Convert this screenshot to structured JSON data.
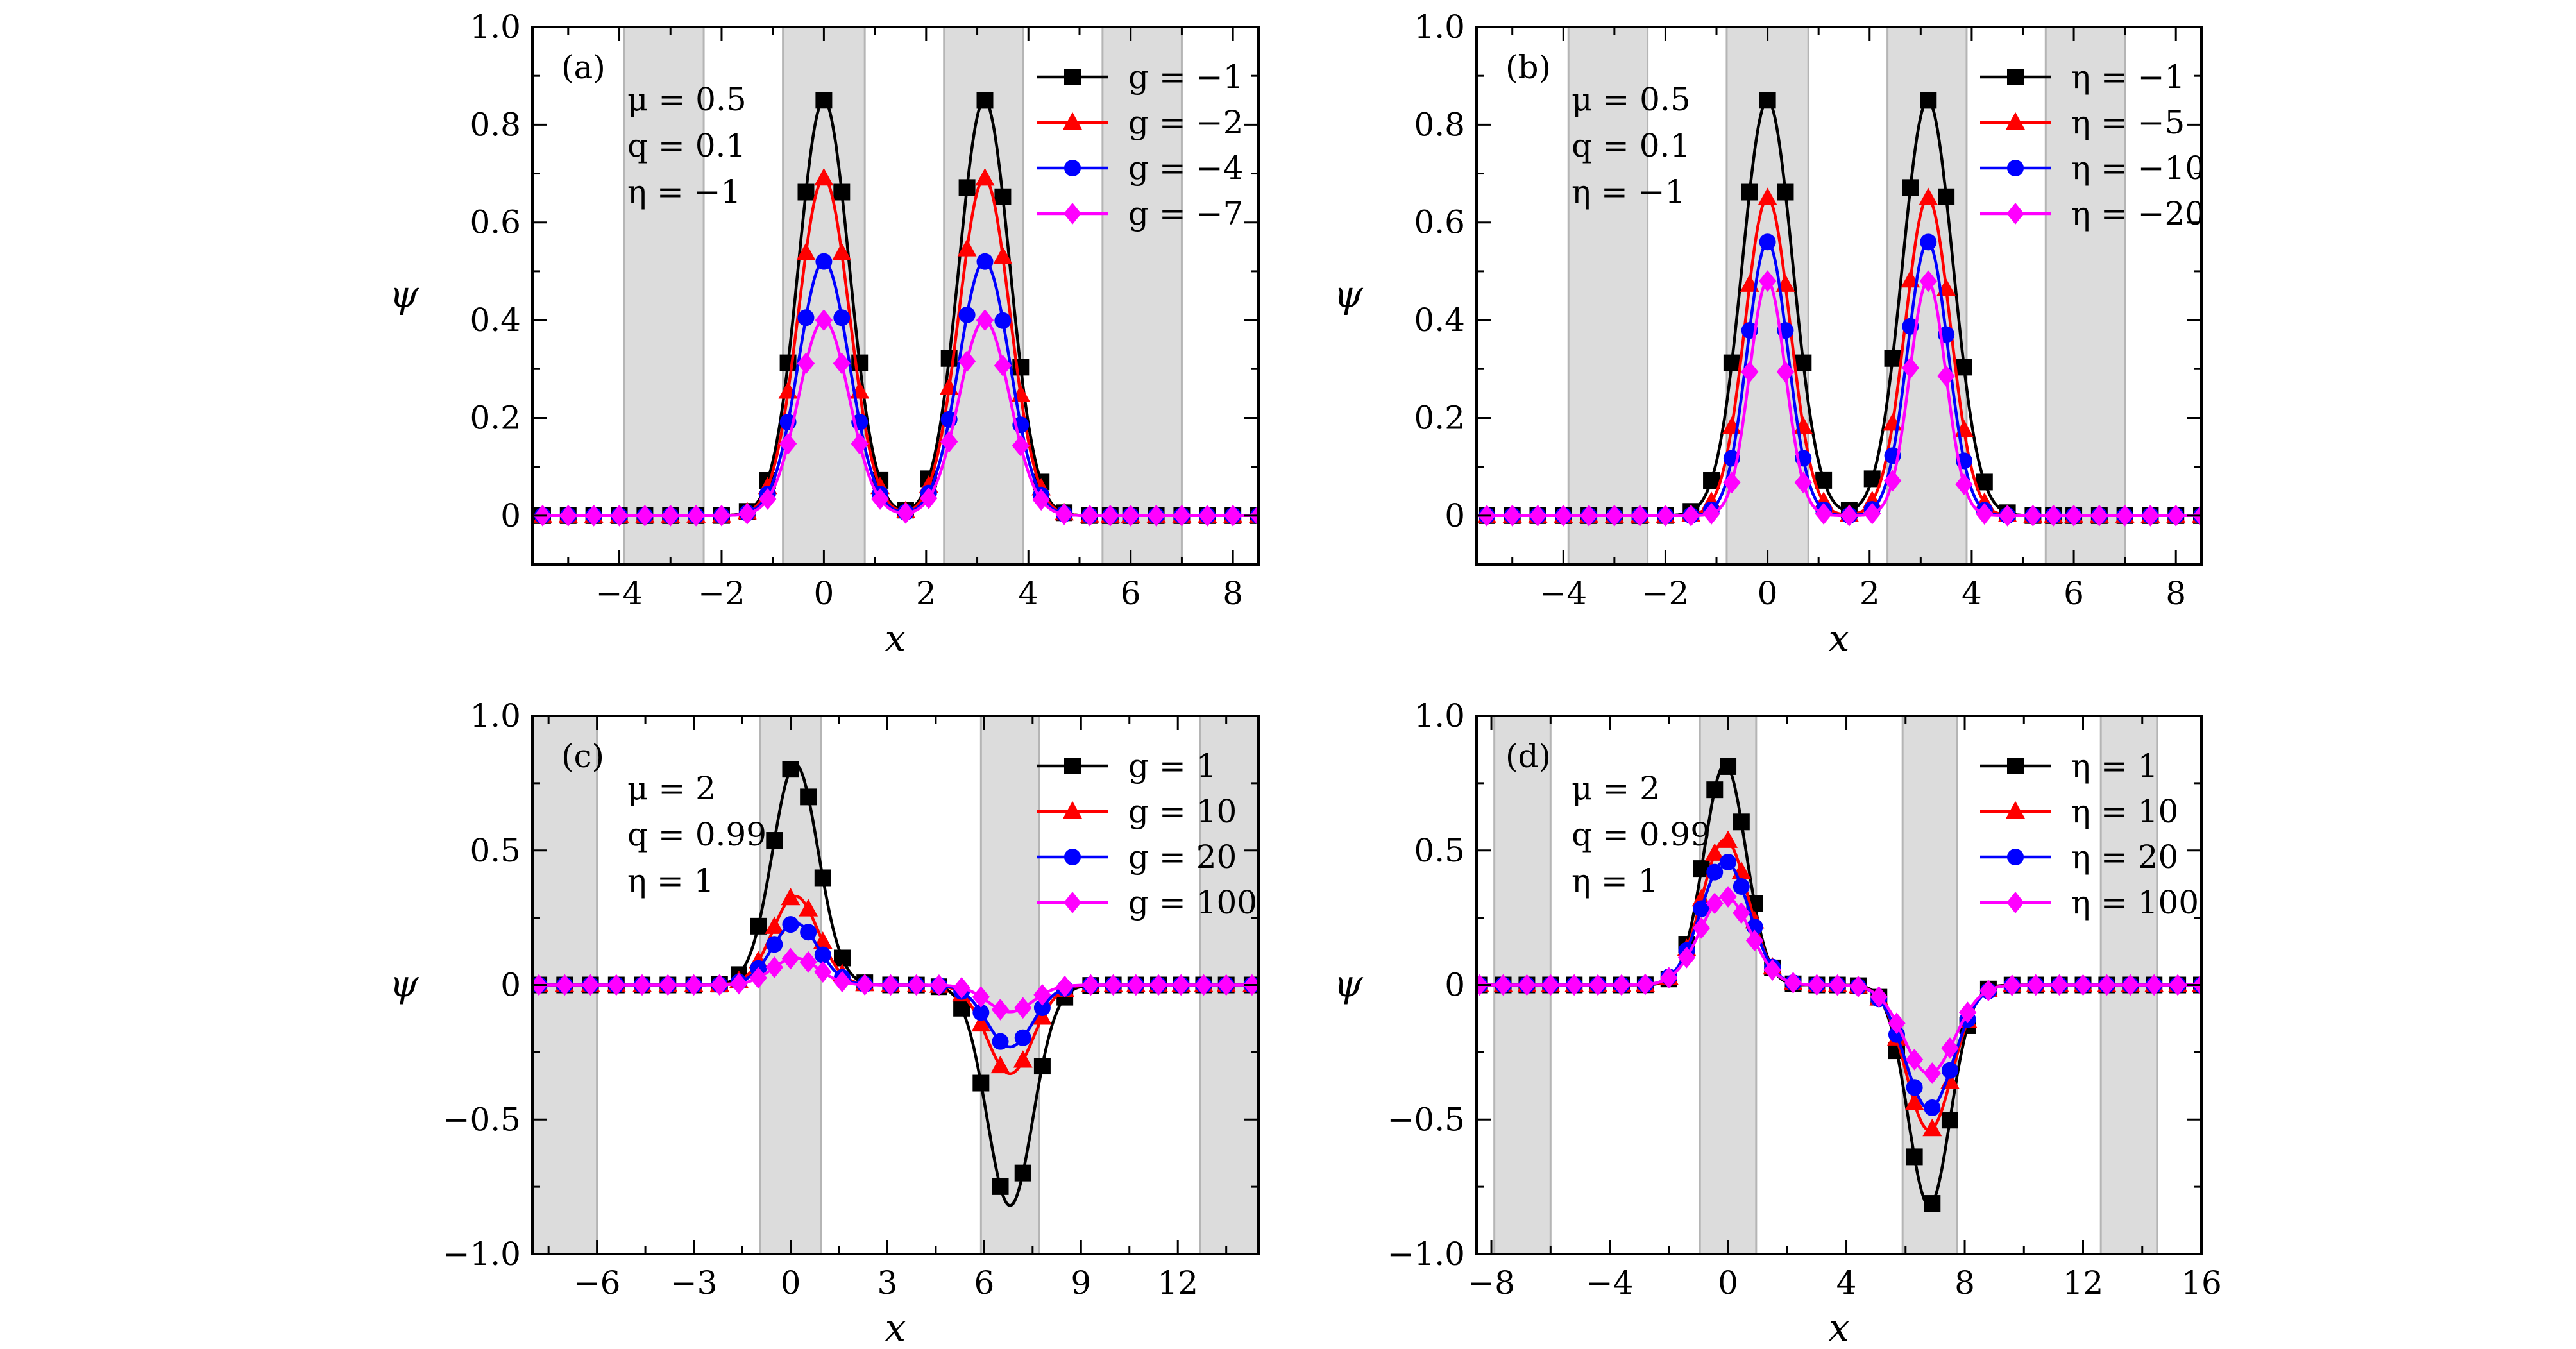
{
  "chart_data": [
    {
      "panel": "(a)",
      "type": "line",
      "xlabel": "x",
      "ylabel": "ψ",
      "xlim": [
        -5.7,
        8.5
      ],
      "ylim": [
        -0.1,
        1.0
      ],
      "xticks": [
        -4,
        -2,
        0,
        2,
        4,
        6,
        8
      ],
      "xtick_labels": [
        "−4",
        "−2",
        "0",
        "2",
        "4",
        "6",
        "8"
      ],
      "yticks": [
        0,
        0.2,
        0.4,
        0.6,
        0.8,
        1.0
      ],
      "ytick_labels": [
        "0",
        "0.2",
        "0.4",
        "0.6",
        "0.8",
        "1.0"
      ],
      "shaded_x_ranges": [
        [
          -3.9,
          -2.35
        ],
        [
          -0.8,
          0.8
        ],
        [
          2.35,
          3.9
        ],
        [
          5.45,
          7.0
        ]
      ],
      "parameters": [
        "μ = 0.5",
        "q = 0.1",
        "η = −1"
      ],
      "legend_position": "top-right",
      "peaks": [
        0,
        3.14
      ],
      "dip_depth_ratio": 0.12,
      "series": [
        {
          "name": "g = −1",
          "color": "#000000",
          "marker": "square",
          "amplitude": 0.85,
          "width": 0.7
        },
        {
          "name": "g = −2",
          "color": "#ff0000",
          "marker": "triangle",
          "amplitude": 0.69,
          "width": 0.7
        },
        {
          "name": "g = −4",
          "color": "#0000ff",
          "marker": "circle",
          "amplitude": 0.52,
          "width": 0.7
        },
        {
          "name": "g = −7",
          "color": "#ff00ff",
          "marker": "diamond",
          "amplitude": 0.4,
          "width": 0.7
        }
      ],
      "marker_x": [
        -5.5,
        -5.0,
        -4.5,
        -4.0,
        -3.5,
        -3.0,
        -2.5,
        -2.0,
        -1.5,
        -1.1,
        -0.7,
        -0.35,
        0.0,
        0.35,
        0.7,
        1.1,
        1.6,
        2.05,
        2.45,
        2.8,
        3.15,
        3.5,
        3.85,
        4.25,
        4.7,
        5.2,
        5.6,
        6.0,
        6.5,
        7.0,
        7.5,
        8.0,
        8.5
      ]
    },
    {
      "panel": "(b)",
      "type": "line",
      "xlabel": "x",
      "ylabel": "ψ",
      "xlim": [
        -5.7,
        8.5
      ],
      "ylim": [
        -0.1,
        1.0
      ],
      "xticks": [
        -4,
        -2,
        0,
        2,
        4,
        6,
        8
      ],
      "xtick_labels": [
        "−4",
        "−2",
        "0",
        "2",
        "4",
        "6",
        "8"
      ],
      "yticks": [
        0,
        0.2,
        0.4,
        0.6,
        0.8,
        1.0
      ],
      "ytick_labels": [
        "0",
        "0.2",
        "0.4",
        "0.6",
        "0.8",
        "1.0"
      ],
      "shaded_x_ranges": [
        [
          -3.9,
          -2.35
        ],
        [
          -0.8,
          0.8
        ],
        [
          2.35,
          3.9
        ],
        [
          5.45,
          7.0
        ]
      ],
      "parameters": [
        "μ = 0.5",
        "q = 0.1",
        "η = −1"
      ],
      "legend_position": "top-right",
      "peaks": [
        0,
        3.14
      ],
      "dip_depth_ratio": 0.12,
      "series": [
        {
          "name": "η = −1",
          "color": "#000000",
          "marker": "square",
          "amplitude": 0.85,
          "width": 0.7
        },
        {
          "name": "η = −5",
          "color": "#ff0000",
          "marker": "triangle",
          "amplitude": 0.65,
          "width": 0.62
        },
        {
          "name": "η = −10",
          "color": "#0000ff",
          "marker": "circle",
          "amplitude": 0.56,
          "width": 0.56
        },
        {
          "name": "η = −20",
          "color": "#ff00ff",
          "marker": "diamond",
          "amplitude": 0.48,
          "width": 0.5
        }
      ],
      "marker_x": [
        -5.5,
        -5.0,
        -4.5,
        -4.0,
        -3.5,
        -3.0,
        -2.5,
        -2.0,
        -1.5,
        -1.1,
        -0.7,
        -0.35,
        0.0,
        0.35,
        0.7,
        1.1,
        1.6,
        2.05,
        2.45,
        2.8,
        3.15,
        3.5,
        3.85,
        4.25,
        4.7,
        5.2,
        5.6,
        6.0,
        6.5,
        7.0,
        7.5,
        8.0,
        8.5
      ]
    },
    {
      "panel": "(c)",
      "type": "line",
      "xlabel": "x",
      "ylabel": "ψ",
      "xlim": [
        -8.0,
        14.5
      ],
      "ylim": [
        -1.0,
        1.0
      ],
      "xticks": [
        -6,
        -3,
        0,
        3,
        6,
        9,
        12
      ],
      "xtick_labels": [
        "−6",
        "−3",
        "0",
        "3",
        "6",
        "9",
        "12"
      ],
      "yticks": [
        -1.0,
        -0.5,
        0,
        0.5,
        1.0
      ],
      "ytick_labels": [
        "−1.0",
        "−0.5",
        "0",
        "0.5",
        "1.0"
      ],
      "shaded_x_ranges": [
        [
          -8.0,
          -6.0
        ],
        [
          -0.95,
          0.95
        ],
        [
          5.9,
          7.7
        ],
        [
          12.7,
          14.5
        ]
      ],
      "parameters": [
        "μ = 2",
        "q = 0.99",
        "η = 1"
      ],
      "legend_position": "top-right",
      "peaks": [
        0.15,
        6.8
      ],
      "series": [
        {
          "name": "g = 1",
          "color": "#000000",
          "marker": "square",
          "amplitude": 0.82,
          "width": 1.0
        },
        {
          "name": "g = 10",
          "color": "#ff0000",
          "marker": "triangle",
          "amplitude": 0.33,
          "width": 1.0
        },
        {
          "name": "g = 20",
          "color": "#0000ff",
          "marker": "circle",
          "amplitude": 0.23,
          "width": 1.0
        },
        {
          "name": "g = 100",
          "color": "#ff00ff",
          "marker": "diamond",
          "amplitude": 0.1,
          "width": 1.0
        }
      ],
      "marker_x": [
        -7.8,
        -7.0,
        -6.2,
        -5.4,
        -4.6,
        -3.8,
        -3.0,
        -2.2,
        -1.6,
        -1.0,
        -0.5,
        0.0,
        0.55,
        1.0,
        1.6,
        2.3,
        3.1,
        3.9,
        4.6,
        5.3,
        5.9,
        6.5,
        7.2,
        7.8,
        8.5,
        9.3,
        10.0,
        10.7,
        11.4,
        12.1,
        12.8,
        13.5,
        14.3
      ]
    },
    {
      "panel": "(d)",
      "type": "line",
      "xlabel": "x",
      "ylabel": "ψ",
      "xlim": [
        -8.5,
        16.0
      ],
      "ylim": [
        -1.0,
        1.0
      ],
      "xticks": [
        -8,
        -4,
        0,
        4,
        8,
        12,
        16
      ],
      "xtick_labels": [
        "−8",
        "−4",
        "0",
        "4",
        "8",
        "12",
        "16"
      ],
      "yticks": [
        -1.0,
        -0.5,
        0,
        0.5,
        1.0
      ],
      "ytick_labels": [
        "−1.0",
        "−0.5",
        "0",
        "0.5",
        "1.0"
      ],
      "shaded_x_ranges": [
        [
          -7.9,
          -6.0
        ],
        [
          -0.95,
          0.95
        ],
        [
          5.9,
          7.75
        ],
        [
          12.6,
          14.5
        ]
      ],
      "parameters": [
        "μ = 2",
        "q = 0.99",
        "η = 1"
      ],
      "legend_position": "top-right",
      "peaks": [
        -0.1,
        6.8
      ],
      "series": [
        {
          "name": "η = 1",
          "color": "#000000",
          "marker": "square",
          "amplitude": 0.82,
          "width": 1.0
        },
        {
          "name": "η = 10",
          "color": "#ff0000",
          "marker": "triangle",
          "amplitude": 0.54,
          "width": 1.1
        },
        {
          "name": "η = 20",
          "color": "#0000ff",
          "marker": "circle",
          "amplitude": 0.46,
          "width": 1.15
        },
        {
          "name": "η = 100",
          "color": "#ff00ff",
          "marker": "diamond",
          "amplitude": 0.33,
          "width": 1.2
        }
      ],
      "marker_x": [
        -8.4,
        -7.6,
        -6.8,
        -6.0,
        -5.2,
        -4.4,
        -3.6,
        -2.8,
        -2.0,
        -1.4,
        -0.9,
        -0.45,
        0.0,
        0.45,
        0.9,
        1.5,
        2.2,
        3.0,
        3.7,
        4.4,
        5.1,
        5.7,
        6.3,
        6.9,
        7.5,
        8.1,
        8.8,
        9.6,
        10.4,
        11.2,
        12.0,
        12.8,
        13.6,
        14.4,
        15.2,
        16.0
      ]
    }
  ]
}
